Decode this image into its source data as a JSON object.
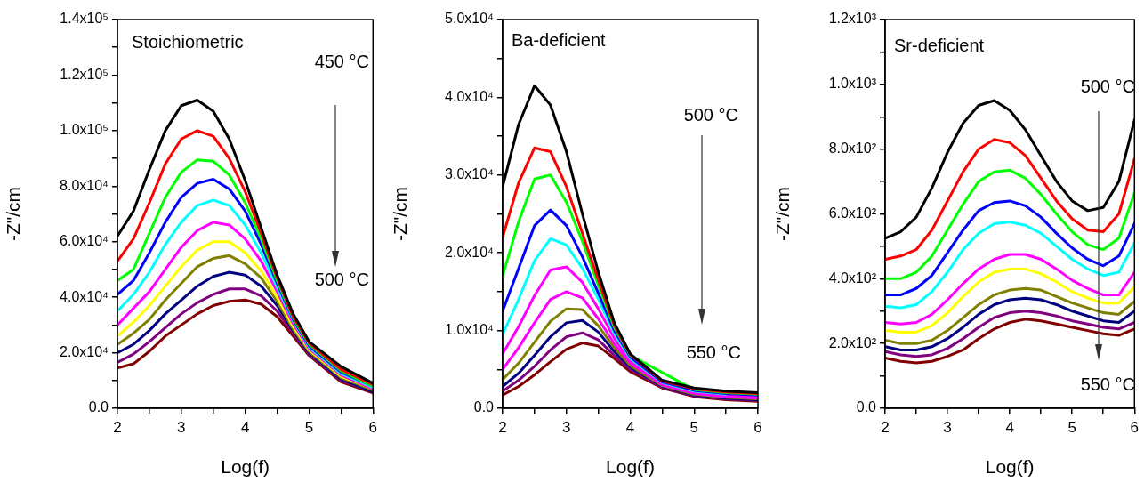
{
  "chart_data": [
    {
      "type": "line",
      "title": "Stoichiometric",
      "xlabel": "Log(f)",
      "ylabel": "-Z\"/cm",
      "annotations": [
        "450 °C",
        "500 °C"
      ],
      "grid": false,
      "legend": false,
      "marker": "none",
      "line_style": "solid",
      "xlim": [
        2,
        6
      ],
      "xticks": [
        2,
        {
          "value": 2.5,
          "label": null
        },
        3,
        {
          "value": 3.5,
          "label": null
        },
        4,
        {
          "value": 4.5,
          "label": null
        },
        5,
        {
          "value": 5.5,
          "label": null
        },
        6
      ],
      "ylim": [
        0,
        140000
      ],
      "yticks": [
        {
          "value": 0,
          "label": "0.0"
        },
        {
          "value": 10000,
          "label": null
        },
        {
          "value": 20000,
          "label": "2.0x10⁴"
        },
        {
          "value": 30000,
          "label": null
        },
        {
          "value": 40000,
          "label": "4.0x10⁴"
        },
        {
          "value": 50000,
          "label": null
        },
        {
          "value": 60000,
          "label": "6.0x10⁴"
        },
        {
          "value": 70000,
          "label": null
        },
        {
          "value": 80000,
          "label": "8.0x10⁴"
        },
        {
          "value": 90000,
          "label": null
        },
        {
          "value": 100000,
          "label": "1.0x10⁵"
        },
        {
          "value": 110000,
          "label": null
        },
        {
          "value": 120000,
          "label": "1.2x10⁵"
        },
        {
          "value": 130000,
          "label": null
        },
        {
          "value": 140000,
          "label": "1.4x10⁵"
        }
      ],
      "x": [
        2,
        2.25,
        2.5,
        2.75,
        3,
        3.25,
        3.5,
        3.75,
        4,
        4.25,
        4.5,
        4.75,
        5,
        5.5,
        6
      ],
      "series": [
        {
          "color": "#000000",
          "values": [
            62000,
            71000,
            86000,
            100000,
            109000,
            111000,
            107000,
            97000,
            82000,
            65000,
            48000,
            34000,
            24000,
            15000,
            9000
          ]
        },
        {
          "color": "#ff0000",
          "values": [
            53000,
            61000,
            74000,
            88000,
            97000,
            100000,
            98000,
            90000,
            78000,
            63000,
            47000,
            33000,
            23500,
            14000,
            8500
          ]
        },
        {
          "color": "#00ff00",
          "values": [
            46000,
            50000,
            63000,
            76000,
            85000,
            89500,
            89000,
            84000,
            74000,
            61000,
            46000,
            32500,
            23000,
            13500,
            8000
          ]
        },
        {
          "color": "#0000ff",
          "values": [
            41000,
            46000,
            56000,
            67000,
            76000,
            81000,
            82500,
            79000,
            71000,
            59000,
            45000,
            32000,
            22500,
            13000,
            8000
          ]
        },
        {
          "color": "#00ffff",
          "values": [
            35000,
            41000,
            49000,
            59000,
            67000,
            73000,
            75000,
            73000,
            66000,
            56000,
            43500,
            31500,
            22000,
            12500,
            7500
          ]
        },
        {
          "color": "#ff00ff",
          "values": [
            30000,
            36000,
            42000,
            50000,
            58000,
            64000,
            67000,
            66000,
            61000,
            53000,
            42000,
            30500,
            21500,
            12000,
            7000
          ]
        },
        {
          "color": "#ffff00",
          "values": [
            26000,
            31000,
            37000,
            44000,
            51000,
            57000,
            60000,
            60000,
            56000,
            49500,
            40000,
            29500,
            21000,
            11500,
            7000
          ]
        },
        {
          "color": "#808000",
          "values": [
            23000,
            27000,
            32000,
            39000,
            45000,
            51000,
            54000,
            55000,
            52000,
            47000,
            38500,
            28500,
            20500,
            11000,
            6500
          ]
        },
        {
          "color": "#000080",
          "values": [
            20000,
            23000,
            28000,
            34000,
            39000,
            44000,
            47500,
            49000,
            48000,
            44000,
            37000,
            28000,
            20000,
            10500,
            6000
          ]
        },
        {
          "color": "#800080",
          "values": [
            16500,
            19500,
            24000,
            29000,
            34000,
            38000,
            41000,
            43000,
            43000,
            40500,
            35000,
            27000,
            19500,
            10000,
            6000
          ]
        },
        {
          "color": "#800000",
          "values": [
            14500,
            16000,
            20500,
            26000,
            30000,
            34000,
            37000,
            38500,
            39000,
            37500,
            33000,
            26000,
            19000,
            9500,
            5500
          ]
        }
      ]
    },
    {
      "type": "line",
      "title": "Ba-deficient",
      "xlabel": "Log(f)",
      "ylabel": "-Z\"/cm",
      "annotations": [
        "500 °C",
        "550 °C"
      ],
      "grid": false,
      "legend": false,
      "marker": "none",
      "line_style": "solid",
      "xlim": [
        2,
        6
      ],
      "xticks": [
        2,
        {
          "value": 2.5,
          "label": null
        },
        3,
        {
          "value": 3.5,
          "label": null
        },
        4,
        {
          "value": 4.5,
          "label": null
        },
        5,
        {
          "value": 5.5,
          "label": null
        },
        6
      ],
      "ylim": [
        0,
        50000
      ],
      "yticks": [
        {
          "value": 0,
          "label": "0.0"
        },
        {
          "value": 5000,
          "label": null
        },
        {
          "value": 10000,
          "label": "1.0x10⁴"
        },
        {
          "value": 15000,
          "label": null
        },
        {
          "value": 20000,
          "label": "2.0x10⁴"
        },
        {
          "value": 25000,
          "label": null
        },
        {
          "value": 30000,
          "label": "3.0x10⁴"
        },
        {
          "value": 35000,
          "label": null
        },
        {
          "value": 40000,
          "label": "4.0x10⁴"
        },
        {
          "value": 45000,
          "label": null
        },
        {
          "value": 50000,
          "label": "5.0x10⁴"
        }
      ],
      "x": [
        2,
        2.25,
        2.5,
        2.75,
        3,
        3.25,
        3.5,
        3.75,
        4,
        4.5,
        5,
        5.5,
        6
      ],
      "series": [
        {
          "color": "#000000",
          "values": [
            28500,
            36500,
            41500,
            39000,
            33000,
            25000,
            17500,
            11000,
            7000,
            3600,
            2600,
            2200,
            2000
          ]
        },
        {
          "color": "#ff0000",
          "values": [
            22000,
            29000,
            33500,
            33000,
            28500,
            22500,
            16500,
            10700,
            6900,
            3500,
            2500,
            2100,
            1900
          ]
        },
        {
          "color": "#00ff00",
          "values": [
            17000,
            24000,
            29500,
            30000,
            26500,
            21500,
            15800,
            10400,
            6800,
            null,
            2400,
            2000,
            1800
          ]
        },
        {
          "color": "#0000ff",
          "values": [
            12500,
            18000,
            23500,
            25500,
            23500,
            19500,
            14800,
            10000,
            6600,
            3400,
            2300,
            1900,
            1700
          ]
        },
        {
          "color": "#00ffff",
          "values": [
            9500,
            14000,
            19000,
            21800,
            21000,
            18000,
            14000,
            9600,
            6400,
            3300,
            2200,
            1800,
            null
          ]
        },
        {
          "color": "#ff00ff",
          "values": [
            7000,
            10500,
            14500,
            17800,
            18200,
            16200,
            12800,
            9000,
            6100,
            3200,
            2000,
            1600,
            1500
          ]
        },
        {
          "color": "#ff00ff",
          "values": [
            5000,
            7800,
            11000,
            14000,
            15000,
            14200,
            11500,
            8300,
            5800,
            3000,
            1900,
            1500,
            1300
          ]
        },
        {
          "color": "#808000",
          "values": [
            3700,
            5800,
            8500,
            11200,
            12800,
            12700,
            10600,
            7800,
            5500,
            2900,
            1800,
            1400,
            1200
          ]
        },
        {
          "color": "#000080",
          "values": [
            2800,
            4500,
            6800,
            9200,
            11000,
            11300,
            9800,
            7300,
            5300,
            2800,
            1700,
            1300,
            1100
          ]
        },
        {
          "color": "#800080",
          "values": [
            2200,
            3600,
            5400,
            7500,
            9200,
            9700,
            8800,
            6800,
            5000,
            2700,
            1600,
            1200,
            1000
          ]
        },
        {
          "color": "#800000",
          "values": [
            1700,
            2800,
            4300,
            6000,
            7600,
            8400,
            8000,
            6400,
            4700,
            2600,
            1500,
            1100,
            900
          ]
        }
      ]
    },
    {
      "type": "line",
      "title": "Sr-deficient",
      "xlabel": "Log(f)",
      "ylabel": "-Z\"/cm",
      "annotations": [
        "500 °C",
        "550 °C"
      ],
      "grid": false,
      "legend": false,
      "marker": "none",
      "line_style": "solid",
      "xlim": [
        2,
        6
      ],
      "xticks": [
        2,
        {
          "value": 2.5,
          "label": null
        },
        3,
        {
          "value": 3.5,
          "label": null
        },
        4,
        {
          "value": 4.5,
          "label": null
        },
        5,
        {
          "value": 5.5,
          "label": null
        },
        6
      ],
      "ylim": [
        0,
        1200
      ],
      "yticks": [
        {
          "value": 0,
          "label": "0.0"
        },
        {
          "value": 100,
          "label": null
        },
        {
          "value": 200,
          "label": "2.0x10²"
        },
        {
          "value": 300,
          "label": null
        },
        {
          "value": 400,
          "label": "4.0x10²"
        },
        {
          "value": 500,
          "label": null
        },
        {
          "value": 600,
          "label": "6.0x10²"
        },
        {
          "value": 700,
          "label": null
        },
        {
          "value": 800,
          "label": "8.0x10²"
        },
        {
          "value": 900,
          "label": null
        },
        {
          "value": 1000,
          "label": "1.0x10³"
        },
        {
          "value": 1100,
          "label": null
        },
        {
          "value": 1200,
          "label": "1.2x10³"
        }
      ],
      "x": [
        2,
        2.25,
        2.5,
        2.75,
        3,
        3.25,
        3.5,
        3.75,
        4,
        4.25,
        4.5,
        4.75,
        5,
        5.25,
        5.5,
        5.75,
        6
      ],
      "series": [
        {
          "color": "#000000",
          "values": [
            525,
            545,
            590,
            680,
            790,
            880,
            935,
            950,
            920,
            860,
            780,
            700,
            640,
            610,
            620,
            700,
            890
          ]
        },
        {
          "color": "#ff0000",
          "values": [
            460,
            470,
            490,
            550,
            640,
            730,
            800,
            830,
            820,
            780,
            710,
            640,
            585,
            550,
            545,
            600,
            770
          ]
        },
        {
          "color": "#00ff00",
          "values": [
            400,
            400,
            420,
            470,
            550,
            630,
            700,
            730,
            735,
            710,
            660,
            600,
            545,
            505,
            490,
            525,
            665
          ]
        },
        {
          "color": "#0000ff",
          "values": [
            350,
            350,
            370,
            410,
            480,
            550,
            610,
            635,
            640,
            625,
            590,
            540,
            495,
            460,
            440,
            470,
            570
          ]
        },
        {
          "color": "#00ffff",
          "values": [
            315,
            310,
            320,
            360,
            420,
            490,
            540,
            570,
            575,
            565,
            540,
            500,
            460,
            430,
            410,
            420,
            510
          ]
        },
        {
          "color": "#ff00ff",
          "values": [
            265,
            260,
            265,
            290,
            335,
            385,
            430,
            460,
            475,
            475,
            460,
            430,
            395,
            370,
            350,
            350,
            420
          ]
        },
        {
          "color": "#ffff00",
          "values": [
            240,
            235,
            235,
            255,
            295,
            345,
            390,
            420,
            430,
            430,
            415,
            390,
            360,
            340,
            325,
            325,
            375
          ]
        },
        {
          "color": "#808000",
          "values": [
            210,
            200,
            200,
            210,
            240,
            280,
            320,
            350,
            365,
            370,
            365,
            345,
            325,
            310,
            295,
            290,
            330
          ]
        },
        {
          "color": "#000080",
          "values": [
            190,
            180,
            180,
            190,
            215,
            250,
            290,
            320,
            335,
            340,
            335,
            320,
            300,
            285,
            270,
            265,
            300
          ]
        },
        {
          "color": "#800080",
          "values": [
            175,
            165,
            160,
            165,
            185,
            215,
            250,
            280,
            295,
            300,
            295,
            285,
            270,
            260,
            250,
            245,
            265
          ]
        },
        {
          "color": "#800000",
          "values": [
            155,
            145,
            140,
            145,
            160,
            180,
            215,
            245,
            265,
            275,
            270,
            260,
            250,
            240,
            230,
            225,
            245
          ]
        }
      ]
    }
  ]
}
